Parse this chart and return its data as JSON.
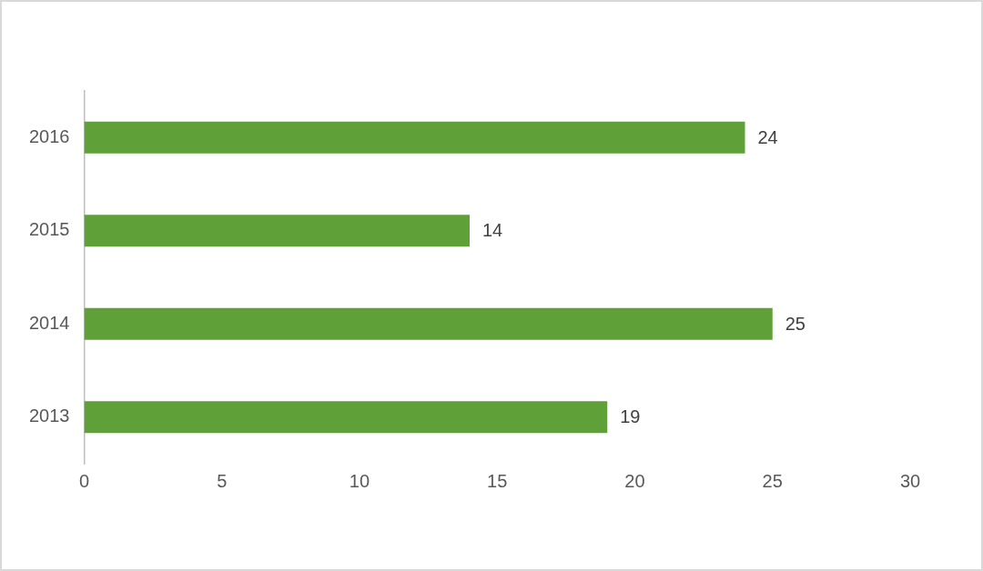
{
  "chart_data": {
    "type": "bar",
    "orientation": "horizontal",
    "categories": [
      "2016",
      "2015",
      "2014",
      "2013"
    ],
    "values": [
      24,
      14,
      25,
      19
    ],
    "color": "#5fa038",
    "xlim": [
      0,
      30
    ],
    "xticks": [
      0,
      5,
      10,
      15,
      20,
      25,
      30
    ],
    "grid": false,
    "data_labels": true
  }
}
